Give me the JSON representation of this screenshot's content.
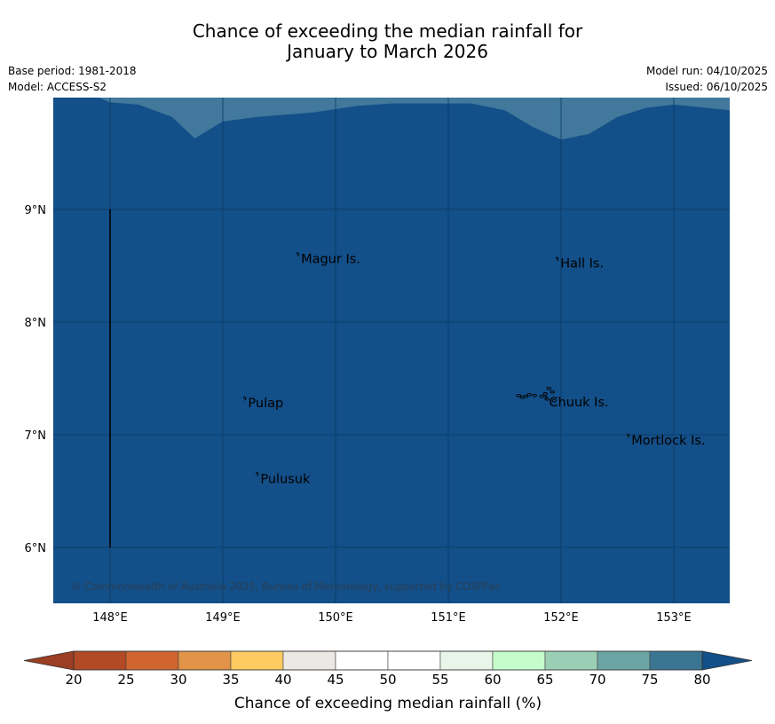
{
  "title_line1": "Chance of exceeding the median rainfall for",
  "title_line2": "January to March 2026",
  "base_period": "Base period: 1981-2018",
  "model": "Model: ACCESS-S2",
  "model_run": "Model run: 04/10/2025",
  "issued": "Issued: 06/10/2025",
  "copyright": "© Commonwealth of Australia 2025, Bureau of Meteorology, supported by COSPPac",
  "map": {
    "lon_range": [
      147.5,
      153.5
    ],
    "lat_range": [
      5.5,
      10.0
    ],
    "lon_ticks": [
      148,
      149,
      150,
      151,
      152,
      153
    ],
    "lon_labels": [
      "148°E",
      "149°E",
      "150°E",
      "151°E",
      "152°E",
      "153°E"
    ],
    "lat_ticks": [
      6,
      7,
      8,
      9
    ],
    "lat_labels": [
      "6°N",
      "7°N",
      "8°N",
      "9°N"
    ],
    "background_color": "#134f88",
    "upper_band_color": "#41789b",
    "upper_band_boundary": [
      [
        147.5,
        10.0
      ],
      [
        147.9,
        10.0
      ],
      [
        148.0,
        9.95
      ],
      [
        148.25,
        9.93
      ],
      [
        148.55,
        9.82
      ],
      [
        148.75,
        9.63
      ],
      [
        149.0,
        9.78
      ],
      [
        149.3,
        9.82
      ],
      [
        149.8,
        9.86
      ],
      [
        150.2,
        9.92
      ],
      [
        150.5,
        9.94
      ],
      [
        151.2,
        9.94
      ],
      [
        151.5,
        9.88
      ],
      [
        151.75,
        9.73
      ],
      [
        152.0,
        9.62
      ],
      [
        152.25,
        9.67
      ],
      [
        152.5,
        9.82
      ],
      [
        152.75,
        9.9
      ],
      [
        153.0,
        9.93
      ],
      [
        153.5,
        9.88
      ],
      [
        153.5,
        10.0
      ]
    ],
    "meridian_segment": {
      "lon": 148.0,
      "lat_from": 6.0,
      "lat_to": 9.0
    },
    "islands": [
      {
        "label": "Magur Is.",
        "lon": 149.67,
        "lat": 8.57
      },
      {
        "label": "Hall Is.",
        "lon": 151.97,
        "lat": 8.53
      },
      {
        "label": "Pulap",
        "lon": 149.2,
        "lat": 7.29
      },
      {
        "label": "Chuuk Is.",
        "lon": 151.87,
        "lat": 7.3
      },
      {
        "label": "Mortlock Is.",
        "lon": 152.6,
        "lat": 6.96
      },
      {
        "label": "Pulusuk",
        "lon": 149.31,
        "lat": 6.62
      }
    ]
  },
  "colorbar": {
    "title": "Chance of exceeding median rainfall (%)",
    "ticks": [
      "20",
      "25",
      "30",
      "35",
      "40",
      "45",
      "50",
      "55",
      "60",
      "65",
      "70",
      "75",
      "80"
    ],
    "under_color": "#9b3e22",
    "over_color": "#134f88",
    "colors": [
      "#b24a25",
      "#d0652f",
      "#e19447",
      "#fecb62",
      "#ebe8e5",
      "#ffffff",
      "#ffffff",
      "#eaf5ea",
      "#c6fbcb",
      "#9bcfb5",
      "#6aa5a4",
      "#3b7594"
    ]
  }
}
